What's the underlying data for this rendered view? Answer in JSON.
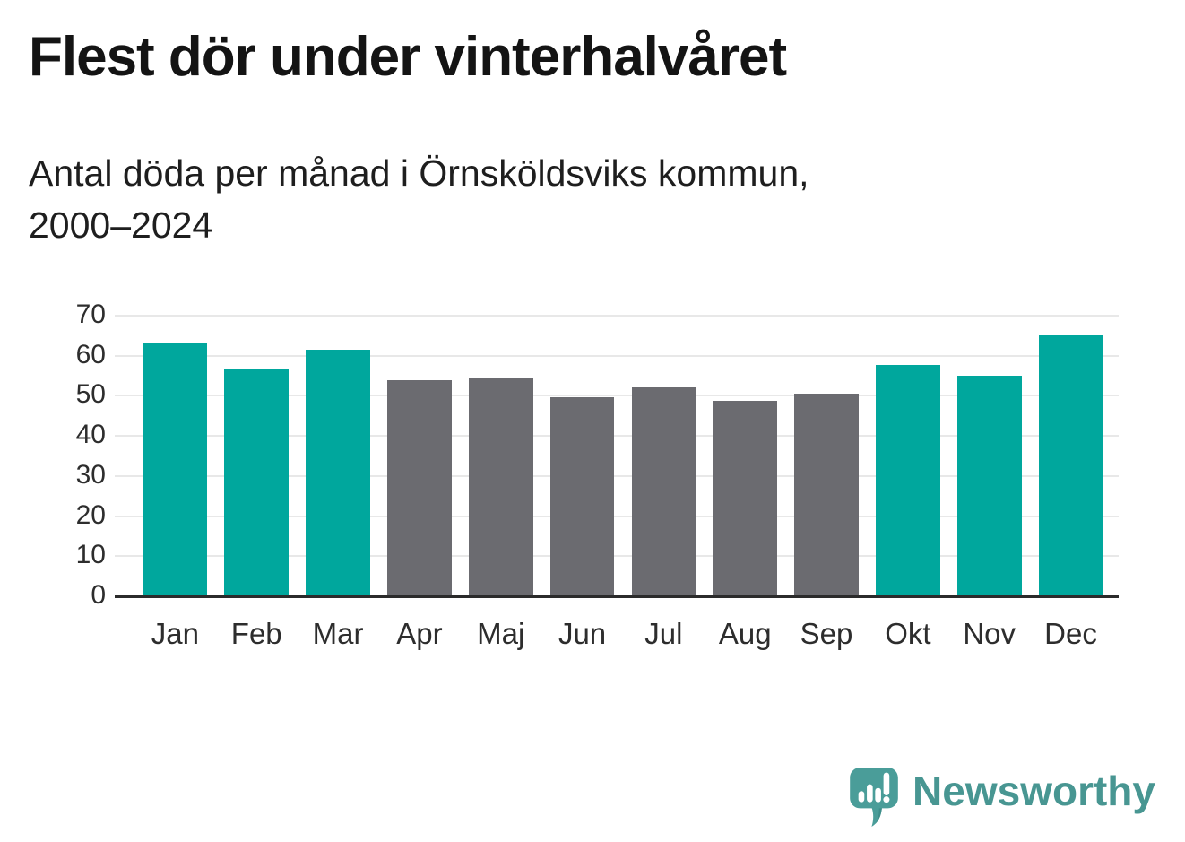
{
  "header": {
    "title": "Flest dör under vinterhalvåret",
    "subtitle_line1": "Antal döda per månad i Örnsköldsviks kommun,",
    "subtitle_line2": "2000–2024"
  },
  "chart_data": {
    "type": "bar",
    "title": "Flest dör under vinterhalvåret",
    "subtitle": "Antal döda per månad i Örnsköldsviks kommun, 2000–2024",
    "categories": [
      "Jan",
      "Feb",
      "Mar",
      "Apr",
      "Maj",
      "Jun",
      "Jul",
      "Aug",
      "Sep",
      "Okt",
      "Nov",
      "Dec"
    ],
    "values": [
      63.2,
      56.5,
      61.6,
      53.8,
      54.5,
      49.6,
      52.2,
      48.7,
      50.6,
      57.8,
      55.1,
      65.0
    ],
    "bar_colors": [
      "teal",
      "teal",
      "teal",
      "gray",
      "gray",
      "gray",
      "gray",
      "gray",
      "gray",
      "teal",
      "teal",
      "teal"
    ],
    "xlabel": "",
    "ylabel": "",
    "ylim": [
      0,
      70
    ],
    "yticks": [
      0,
      10,
      20,
      30,
      40,
      50,
      60,
      70
    ],
    "grid": true,
    "legend_position": "none"
  },
  "colors": {
    "teal": "#00a79d",
    "gray": "#6b6b70",
    "grid": "#e8e8e8",
    "axis": "#2b2b2b",
    "title_text": "#141414",
    "tick_text": "#2d2d2d",
    "brand_teal": "#489692"
  },
  "footer": {
    "brand_name": "Newsworthy",
    "logo_icon": "speech-bubble-bar-chart-icon"
  }
}
